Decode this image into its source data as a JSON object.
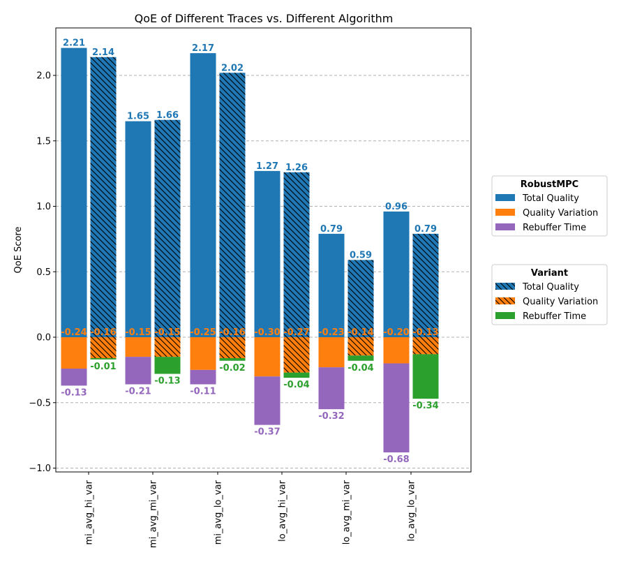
{
  "chart_data": {
    "type": "bar",
    "title": "QoE of Different Traces vs. Different Algorithm",
    "xlabel": "",
    "ylabel": "QoE Score",
    "ylim": [
      -1.05,
      2.35
    ],
    "yticks": [
      -1.0,
      -0.5,
      0.0,
      0.5,
      1.0,
      1.5,
      2.0
    ],
    "ytick_labels": [
      "−1.0",
      "−0.5",
      "0.0",
      "0.5",
      "1.0",
      "1.5",
      "2.0"
    ],
    "grid": "y-dashed",
    "categories": [
      "mi_avg_hi_var",
      "mi_avg_mi_var",
      "mi_avg_lo_var",
      "lo_avg_hi_var",
      "lo_avg_mi_var",
      "lo_avg_lo_var"
    ],
    "groups": [
      {
        "name": "RobustMPC",
        "hatched": false,
        "total_quality": [
          2.21,
          1.65,
          2.17,
          1.27,
          0.79,
          0.96
        ],
        "total_quality_labels": [
          "2.21",
          "1.65",
          "2.17",
          "1.27",
          "0.79",
          "0.96"
        ],
        "quality_variation": [
          -0.24,
          -0.15,
          -0.25,
          -0.3,
          -0.23,
          -0.2
        ],
        "quality_variation_labels": [
          "-0.24",
          "-0.15",
          "-0.25",
          "-0.30",
          "-0.23",
          "-0.20"
        ],
        "rebuffer_time": [
          -0.13,
          -0.21,
          -0.11,
          -0.37,
          -0.32,
          -0.68
        ],
        "rebuffer_time_labels": [
          "-0.13",
          "-0.21",
          "-0.11",
          "-0.37",
          "-0.32",
          "-0.68"
        ],
        "rebuffer_color": "#9467bd"
      },
      {
        "name": "Variant",
        "hatched": true,
        "total_quality": [
          2.14,
          1.66,
          2.02,
          1.26,
          0.59,
          0.79
        ],
        "total_quality_labels": [
          "2.14",
          "1.66",
          "2.02",
          "1.26",
          "0.59",
          "0.79"
        ],
        "quality_variation": [
          -0.16,
          -0.15,
          -0.16,
          -0.27,
          -0.14,
          -0.13
        ],
        "quality_variation_labels": [
          "-0.16",
          "-0.15",
          "-0.16",
          "-0.27",
          "-0.14",
          "-0.13"
        ],
        "rebuffer_time": [
          -0.01,
          -0.13,
          -0.02,
          -0.04,
          -0.04,
          -0.34
        ],
        "rebuffer_time_labels": [
          "-0.01",
          "-0.13",
          "-0.02",
          "-0.04",
          "-0.04",
          "-0.34"
        ],
        "rebuffer_color": "#2ca02c"
      }
    ],
    "colors": {
      "total_quality": "#1f77b4",
      "quality_variation": "#ff7f0e",
      "grid": "#b0b0b0",
      "hatch": "#000000"
    },
    "legends": [
      {
        "title": "RobustMPC",
        "placement": "right",
        "entries": [
          {
            "label": "Total Quality",
            "color": "#1f77b4",
            "hatched": false
          },
          {
            "label": "Quality Variation",
            "color": "#ff7f0e",
            "hatched": false
          },
          {
            "label": "Rebuffer Time",
            "color": "#9467bd",
            "hatched": false
          }
        ]
      },
      {
        "title": "Variant",
        "placement": "right",
        "entries": [
          {
            "label": "Total Quality",
            "color": "#1f77b4",
            "hatched": true
          },
          {
            "label": "Quality Variation",
            "color": "#ff7f0e",
            "hatched": true
          },
          {
            "label": "Rebuffer Time",
            "color": "#2ca02c",
            "hatched": false
          }
        ]
      }
    ]
  }
}
